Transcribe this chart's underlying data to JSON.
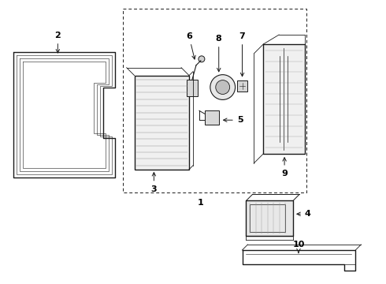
{
  "bg_color": "#ffffff",
  "line_color": "#1a1a1a",
  "label_color": "#000000",
  "fig_w": 4.9,
  "fig_h": 3.6,
  "dpi": 100
}
